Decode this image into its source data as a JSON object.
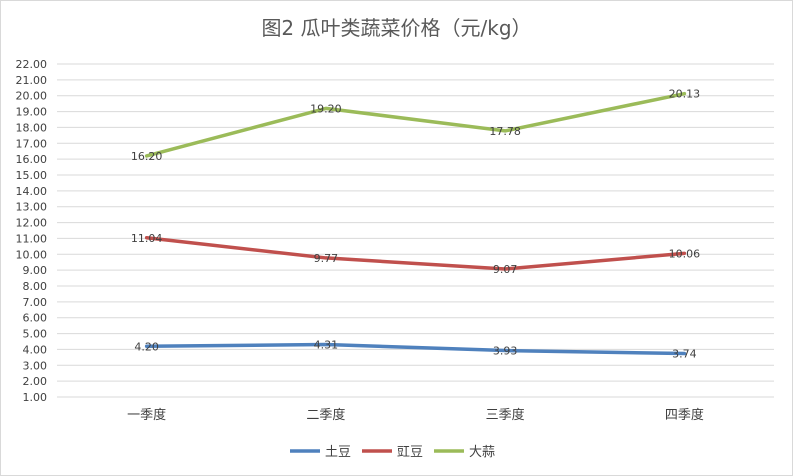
{
  "chart_data": {
    "type": "line",
    "title": "图2  瓜叶类蔬菜价格（元/kg）",
    "categories": [
      "一季度",
      "二季度",
      "三季度",
      "四季度"
    ],
    "y_ticks": [
      "1.00",
      "2.00",
      "3.00",
      "4.00",
      "5.00",
      "6.00",
      "7.00",
      "8.00",
      "9.00",
      "10.00",
      "11.00",
      "12.00",
      "13.00",
      "14.00",
      "15.00",
      "16.00",
      "17.00",
      "18.00",
      "19.00",
      "20.00",
      "21.00",
      "22.00"
    ],
    "ylim": [
      1,
      22
    ],
    "grid": true,
    "legend_position": "bottom",
    "series": [
      {
        "name": "土豆",
        "values": [
          4.2,
          4.31,
          3.93,
          3.74
        ],
        "labels": [
          "4.20",
          "4.31",
          "3.93",
          "3.74"
        ],
        "color": "#4f81bd"
      },
      {
        "name": "豇豆",
        "values": [
          11.04,
          9.77,
          9.07,
          10.06
        ],
        "labels": [
          "11.04",
          "9.77",
          "9.07",
          "10.06"
        ],
        "color": "#c0504d"
      },
      {
        "name": "大蒜",
        "values": [
          16.2,
          19.2,
          17.78,
          20.13
        ],
        "labels": [
          "16.20",
          "19.20",
          "17.78",
          "20.13"
        ],
        "color": "#9bbb59"
      }
    ]
  }
}
